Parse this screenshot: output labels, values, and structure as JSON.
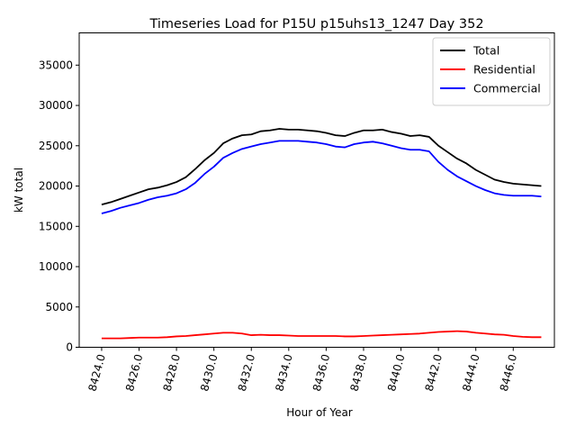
{
  "chart_data": {
    "type": "line",
    "title": "Timeseries Load for P15U p15uhs13_1247  Day 352",
    "xlabel": "Hour of Year",
    "ylabel": "kW total",
    "xlim": [
      8422.8,
      8448.2
    ],
    "ylim": [
      0,
      39000
    ],
    "grid": false,
    "legend_position": "top-right",
    "x_ticks": [
      8424,
      8426,
      8428,
      8430,
      8432,
      8434,
      8436,
      8438,
      8440,
      8442,
      8444,
      8446
    ],
    "x_tick_labels": [
      "8424.0",
      "8426.0",
      "8428.0",
      "8430.0",
      "8432.0",
      "8434.0",
      "8436.0",
      "8438.0",
      "8440.0",
      "8442.0",
      "8444.0",
      "8446.0"
    ],
    "y_ticks": [
      0,
      5000,
      10000,
      15000,
      20000,
      25000,
      30000,
      35000
    ],
    "y_tick_labels": [
      "0",
      "5000",
      "10000",
      "15000",
      "20000",
      "25000",
      "30000",
      "35000"
    ],
    "series": [
      {
        "name": "Total",
        "color": "#000000",
        "x": [
          8424,
          8424.5,
          8425,
          8425.5,
          8426,
          8426.5,
          8427,
          8427.5,
          8428,
          8428.5,
          8429,
          8429.5,
          8430,
          8430.5,
          8431,
          8431.5,
          8432,
          8432.5,
          8433,
          8433.5,
          8434,
          8434.5,
          8435,
          8435.5,
          8436,
          8436.5,
          8437,
          8437.5,
          8438,
          8438.5,
          8439,
          8439.5,
          8440,
          8440.5,
          8441,
          8441.5,
          8442,
          8442.5,
          8443,
          8443.5,
          8444,
          8444.5,
          8445,
          8445.5,
          8446,
          8446.5,
          8447,
          8447.5
        ],
        "values": [
          17700,
          18000,
          18400,
          18800,
          19200,
          19600,
          19800,
          20100,
          20500,
          21100,
          22100,
          23200,
          24100,
          25300,
          25900,
          26300,
          26400,
          26800,
          26900,
          27100,
          27000,
          27000,
          26900,
          26800,
          26600,
          26300,
          26200,
          26600,
          26900,
          26900,
          27000,
          26700,
          26500,
          26200,
          26300,
          26100,
          25000,
          24200,
          23400,
          22800,
          22000,
          21400,
          20800,
          20500,
          20300,
          20200,
          20100,
          20000
        ]
      },
      {
        "name": "Residential",
        "color": "#ff0000",
        "x": [
          8424,
          8424.5,
          8425,
          8425.5,
          8426,
          8426.5,
          8427,
          8427.5,
          8428,
          8428.5,
          8429,
          8429.5,
          8430,
          8430.5,
          8431,
          8431.5,
          8432,
          8432.5,
          8433,
          8433.5,
          8434,
          8434.5,
          8435,
          8435.5,
          8436,
          8436.5,
          8437,
          8437.5,
          8438,
          8438.5,
          8439,
          8439.5,
          8440,
          8440.5,
          8441,
          8441.5,
          8442,
          8442.5,
          8443,
          8443.5,
          8444,
          8444.5,
          8445,
          8445.5,
          8446,
          8446.5,
          8447,
          8447.5
        ],
        "values": [
          1100,
          1100,
          1100,
          1150,
          1200,
          1200,
          1200,
          1250,
          1350,
          1400,
          1500,
          1600,
          1700,
          1800,
          1800,
          1700,
          1500,
          1550,
          1500,
          1500,
          1450,
          1400,
          1400,
          1400,
          1400,
          1400,
          1350,
          1350,
          1400,
          1450,
          1500,
          1550,
          1600,
          1650,
          1700,
          1800,
          1900,
          1950,
          2000,
          1950,
          1800,
          1700,
          1600,
          1550,
          1400,
          1300,
          1250,
          1250
        ]
      },
      {
        "name": "Commercial",
        "color": "#0000ff",
        "x": [
          8424,
          8424.5,
          8425,
          8425.5,
          8426,
          8426.5,
          8427,
          8427.5,
          8428,
          8428.5,
          8429,
          8429.5,
          8430,
          8430.5,
          8431,
          8431.5,
          8432,
          8432.5,
          8433,
          8433.5,
          8434,
          8434.5,
          8435,
          8435.5,
          8436,
          8436.5,
          8437,
          8437.5,
          8438,
          8438.5,
          8439,
          8439.5,
          8440,
          8440.5,
          8441,
          8441.5,
          8442,
          8442.5,
          8443,
          8443.5,
          8444,
          8444.5,
          8445,
          8445.5,
          8446,
          8446.5,
          8447,
          8447.5
        ],
        "values": [
          16600,
          16900,
          17300,
          17600,
          17900,
          18300,
          18600,
          18800,
          19100,
          19600,
          20400,
          21500,
          22400,
          23500,
          24100,
          24600,
          24900,
          25200,
          25400,
          25600,
          25600,
          25600,
          25500,
          25400,
          25200,
          24900,
          24800,
          25200,
          25400,
          25500,
          25300,
          25000,
          24700,
          24500,
          24500,
          24300,
          23000,
          22000,
          21200,
          20600,
          20000,
          19500,
          19100,
          18900,
          18800,
          18800,
          18800,
          18700
        ]
      }
    ]
  }
}
